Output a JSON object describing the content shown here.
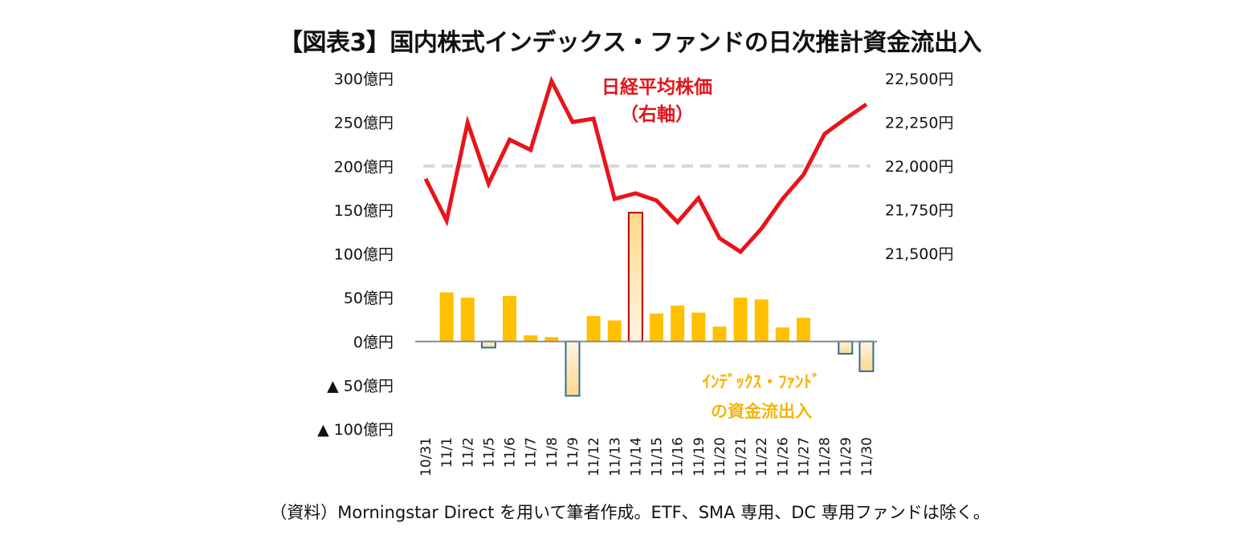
{
  "title": "【図表3】国内株式インデックス・ファンドの日次推計資金流出入",
  "source": "（資料）Morningstar Direct を用いて筆者作成。ETF、SMA 専用、DC 専用ファンドは除く。",
  "chart_data": {
    "type": "bar+line",
    "title": "【図表3】国内株式インデックス・ファンドの日次推計資金流出入",
    "categories": [
      "10/31",
      "11/1",
      "11/2",
      "11/5",
      "11/6",
      "11/7",
      "11/8",
      "11/9",
      "11/12",
      "11/13",
      "11/14",
      "11/15",
      "11/16",
      "11/19",
      "11/20",
      "11/21",
      "11/22",
      "11/26",
      "11/27",
      "11/28",
      "11/29",
      "11/30"
    ],
    "series": [
      {
        "name": "インデックス・ファンドの資金流出入",
        "type": "bar",
        "axis": "left",
        "unit": "億円",
        "values": [
          0,
          56,
          50,
          -7,
          52,
          7,
          5,
          -62,
          29,
          24,
          147,
          32,
          41,
          33,
          17,
          50,
          48,
          16,
          27,
          0,
          -14,
          -34
        ],
        "highlight_index": 10
      },
      {
        "name": "日経平均株価",
        "type": "line",
        "axis": "right",
        "unit": "円",
        "values": [
          21927,
          21688,
          22248,
          21899,
          22151,
          22092,
          22486,
          22252,
          22271,
          21812,
          21844,
          21803,
          21679,
          21817,
          21587,
          21509,
          21642,
          21812,
          21950,
          22183,
          22271,
          22353
        ]
      }
    ],
    "left_axis": {
      "ylim": [
        -100,
        300
      ],
      "ticks": [
        300,
        250,
        200,
        150,
        100,
        50,
        0,
        -50,
        -100
      ],
      "tick_labels": [
        "300億円",
        "250億円",
        "200億円",
        "150億円",
        "100億円",
        "50億円",
        "0億円",
        "▲ 50億円",
        "▲ 100億円"
      ]
    },
    "right_axis": {
      "ylim": [
        21500,
        22500
      ],
      "ticks": [
        22500,
        22250,
        22000,
        21750,
        21500
      ],
      "tick_labels": [
        "22,500円",
        "22,250円",
        "22,000円",
        "21,750円",
        "21,500円"
      ]
    },
    "reference_line": {
      "axis": "right",
      "value": 22000,
      "style": "dashed"
    },
    "annotations": {
      "line_label": [
        "日経平均株価",
        "（右軸）"
      ],
      "bar_label": [
        "ｲﾝﾃﾞｯｸｽ・ﾌｧﾝﾄﾞ",
        "の資金流出入"
      ]
    },
    "grid": false,
    "colors": {
      "line": "#E8141B",
      "bar_positive": "#FFC000",
      "bar_highlight_border": "#C00000",
      "bar_negative_border": "#2E6E9E",
      "gradient_light": "#FFF4E2",
      "gradient_dark": "#FFD98A",
      "axis": "#8C8C8C",
      "reference": "#D9D9D9"
    }
  }
}
